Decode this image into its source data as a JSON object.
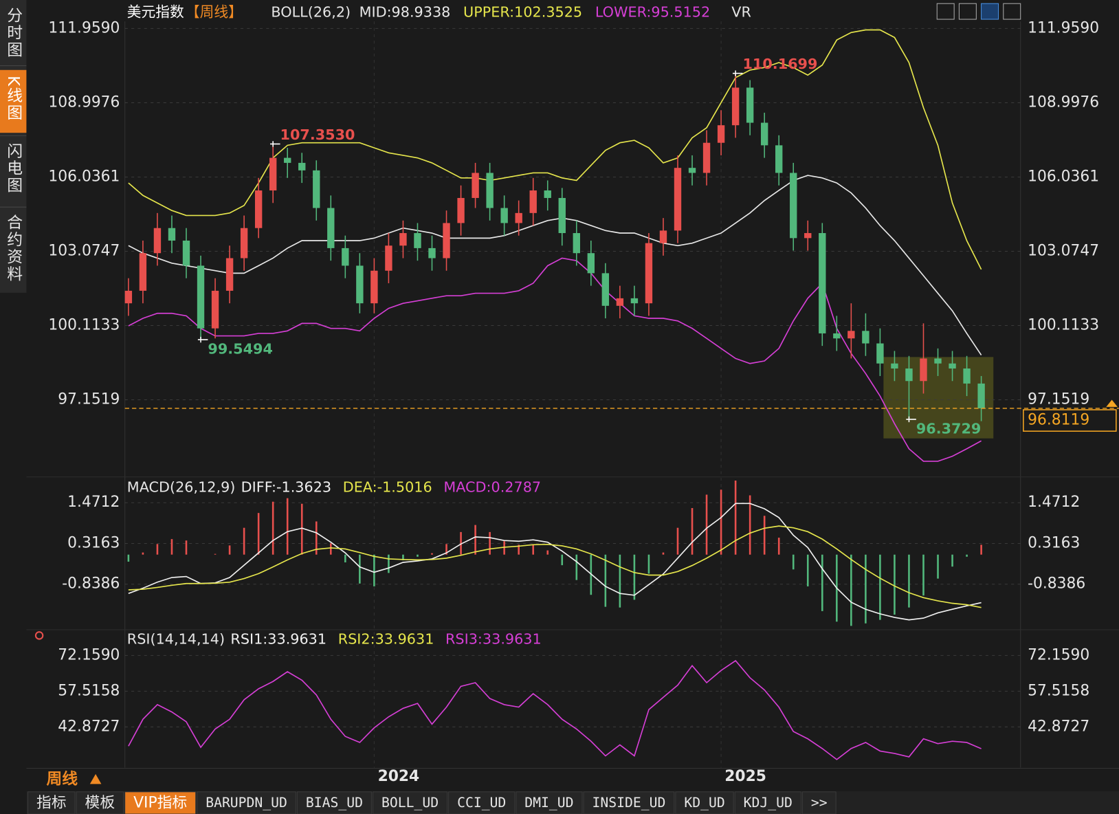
{
  "sidebar": [
    "分时图",
    "K线图",
    "闪电图",
    "合约资料"
  ],
  "period": "周线",
  "tabs": [
    "指标",
    "模板",
    "VIP指标",
    "BARUPDN_UD",
    "BIAS_UD",
    "BOLL_UD",
    "CCI_UD",
    "DMI_UD",
    "INSIDE_UD",
    "KD_UD",
    "KDJ_UD",
    ">>"
  ],
  "chart_data": [
    {
      "type": "candlestick",
      "title": "美元指数",
      "subtitle": "【周线】",
      "indicator": "BOLL(26,2)",
      "extra": "VR",
      "ylim": [
        94.16,
        112.24
      ],
      "yticks": [
        {
          "value": 111.959,
          "label": "111.9590"
        },
        108.9976,
        106.0361,
        103.0747,
        100.1133,
        97.1519
      ],
      "grid": true,
      "up_color": "#e8504d",
      "down_color": "#52b87c",
      "categories": [
        null,
        null,
        null,
        null,
        null,
        null,
        null,
        null,
        null,
        null,
        null,
        null,
        null,
        null,
        null,
        null,
        null,
        "2024",
        null,
        null,
        null,
        null,
        null,
        null,
        null,
        null,
        null,
        null,
        null,
        null,
        null,
        null,
        null,
        null,
        null,
        null,
        null,
        null,
        null,
        null,
        null,
        "2025",
        null,
        null,
        null,
        null,
        null,
        null,
        null,
        null,
        null,
        null,
        null,
        null,
        null,
        null,
        null,
        null,
        null,
        null
      ],
      "open": [
        101.0,
        101.5,
        103.0,
        104.0,
        103.5,
        102.5,
        100.0,
        101.5,
        102.8,
        104.0,
        105.5,
        106.8,
        106.6,
        106.3,
        104.8,
        103.2,
        102.5,
        101.0,
        102.3,
        103.3,
        103.8,
        103.2,
        102.8,
        104.2,
        105.2,
        106.2,
        104.8,
        104.2,
        104.6,
        105.5,
        105.2,
        103.8,
        103.0,
        102.2,
        100.9,
        101.2,
        101.0,
        103.4,
        103.9,
        106.4,
        106.2,
        107.4,
        108.1,
        109.6,
        108.2,
        107.3,
        106.2,
        103.6,
        103.8,
        99.8,
        99.6,
        99.9,
        99.4,
        98.6,
        98.4,
        97.9,
        98.8,
        98.6,
        98.4,
        97.8
      ],
      "high": [
        102.0,
        103.5,
        104.6,
        104.5,
        104.0,
        102.9,
        102.0,
        103.3,
        104.5,
        106.0,
        107.353,
        107.2,
        107.0,
        106.7,
        105.3,
        103.7,
        103.0,
        102.8,
        103.8,
        104.3,
        104.2,
        103.7,
        104.7,
        105.7,
        106.6,
        106.6,
        105.3,
        105.1,
        106.0,
        105.9,
        105.6,
        104.3,
        103.5,
        102.6,
        101.7,
        101.7,
        103.8,
        104.4,
        106.9,
        106.9,
        107.9,
        108.7,
        110.1699,
        109.9,
        108.6,
        107.7,
        106.6,
        104.3,
        104.2,
        100.5,
        101.0,
        100.6,
        100.0,
        99.1,
        98.9,
        100.2,
        99.2,
        99.1,
        98.9,
        98.1
      ],
      "low": [
        100.5,
        101.0,
        102.5,
        103.0,
        102.0,
        99.5494,
        99.6,
        101.0,
        102.3,
        103.6,
        105.0,
        106.0,
        105.8,
        104.3,
        102.7,
        102.0,
        100.6,
        100.6,
        101.8,
        102.8,
        102.7,
        102.3,
        102.3,
        103.7,
        104.8,
        104.3,
        103.7,
        103.7,
        104.1,
        104.7,
        103.3,
        102.5,
        101.7,
        100.4,
        100.4,
        100.5,
        100.5,
        102.9,
        103.4,
        105.7,
        105.7,
        106.9,
        107.6,
        107.7,
        106.8,
        105.7,
        103.1,
        103.1,
        99.3,
        99.1,
        98.8,
        98.9,
        98.1,
        97.9,
        96.3729,
        97.4,
        98.1,
        97.9,
        97.3,
        96.3
      ],
      "close": [
        101.5,
        103.0,
        104.0,
        103.5,
        102.5,
        100.0,
        101.5,
        102.8,
        104.0,
        105.5,
        106.8,
        106.6,
        106.3,
        104.8,
        103.2,
        102.5,
        101.0,
        102.3,
        103.3,
        103.8,
        103.2,
        102.8,
        104.2,
        105.2,
        106.2,
        104.8,
        104.2,
        104.6,
        105.5,
        105.2,
        103.8,
        103.0,
        102.2,
        100.9,
        101.2,
        101.0,
        103.4,
        103.9,
        106.4,
        106.2,
        107.4,
        108.1,
        109.6,
        108.2,
        107.3,
        106.2,
        103.6,
        103.8,
        99.8,
        99.6,
        99.9,
        99.4,
        98.6,
        98.4,
        97.9,
        98.8,
        98.6,
        98.4,
        97.8,
        96.8119
      ],
      "last_color": "#f5a623",
      "annotations": [
        {
          "label": "107.3530",
          "value": 107.353
        },
        {
          "label": "110.1699",
          "value": 110.1699
        },
        {
          "label": "99.5494",
          "value": 99.5494
        },
        {
          "label": "96.3729",
          "value": 96.3729
        }
      ],
      "series": [
        {
          "name": "MID:98.9338",
          "color": "#e8e8e8",
          "values": [
            103.3,
            103.0,
            102.8,
            102.6,
            102.5,
            102.4,
            102.3,
            102.2,
            102.2,
            102.5,
            102.8,
            103.2,
            103.5,
            103.5,
            103.5,
            103.5,
            103.5,
            103.6,
            103.8,
            104.0,
            103.9,
            103.8,
            103.6,
            103.6,
            103.6,
            103.6,
            103.7,
            103.9,
            104.1,
            104.3,
            104.4,
            104.3,
            104.1,
            103.9,
            103.8,
            103.8,
            103.6,
            103.4,
            103.3,
            103.4,
            103.6,
            103.8,
            104.2,
            104.6,
            105.1,
            105.5,
            105.9,
            106.1,
            106.0,
            105.8,
            105.4,
            104.8,
            104.1,
            103.5,
            102.8,
            102.1,
            101.4,
            100.7,
            99.8,
            98.9338
          ]
        },
        {
          "name": "UPPER:102.3525",
          "color": "#e6e64c",
          "values": [
            105.8,
            105.3,
            105.0,
            104.7,
            104.5,
            104.5,
            104.5,
            104.6,
            104.9,
            105.8,
            106.8,
            107.3,
            107.4,
            107.4,
            107.4,
            107.4,
            107.4,
            107.2,
            107.0,
            106.9,
            106.8,
            106.6,
            106.3,
            106.0,
            106.0,
            105.9,
            106.0,
            106.1,
            106.2,
            106.2,
            106.0,
            105.9,
            106.5,
            107.1,
            107.4,
            107.5,
            107.2,
            106.6,
            106.8,
            107.6,
            108.0,
            109.0,
            110.0,
            110.3,
            110.4,
            110.6,
            110.4,
            110.1,
            110.5,
            111.5,
            111.8,
            111.9,
            111.9,
            111.6,
            110.6,
            108.8,
            107.3,
            105.0,
            103.5,
            102.3525
          ]
        },
        {
          "name": "LOWER:95.5152",
          "color": "#d63fd6",
          "values": [
            100.1,
            100.4,
            100.6,
            100.6,
            100.5,
            100.0,
            99.7,
            99.7,
            99.7,
            99.8,
            99.8,
            99.9,
            100.2,
            100.2,
            100.0,
            100.0,
            99.9,
            100.4,
            100.8,
            101.0,
            101.1,
            101.2,
            101.3,
            101.3,
            101.4,
            101.4,
            101.4,
            101.5,
            101.8,
            102.5,
            102.8,
            102.7,
            102.2,
            101.5,
            101.0,
            100.5,
            100.4,
            100.4,
            100.3,
            100.0,
            99.6,
            99.2,
            98.8,
            98.6,
            98.7,
            99.2,
            100.3,
            101.2,
            101.8,
            100.0,
            99.0,
            98.2,
            97.3,
            96.2,
            95.2,
            94.7,
            94.7,
            94.9,
            95.2,
            95.5152
          ]
        }
      ]
    },
    {
      "type": "macd",
      "title": "MACD(26,12,9)",
      "ylim": [
        -2.09,
        2.16
      ],
      "yticks": [
        1.4712,
        0.3163,
        -0.8386
      ],
      "grid": true,
      "series": [
        {
          "name": "DIFF:-1.3623",
          "color": "#f0f0f0",
          "values": [
            -1.1,
            -0.95,
            -0.78,
            -0.65,
            -0.62,
            -0.82,
            -0.8,
            -0.65,
            -0.3,
            0.05,
            0.4,
            0.65,
            0.75,
            0.62,
            0.35,
            0.05,
            -0.35,
            -0.5,
            -0.38,
            -0.22,
            -0.18,
            -0.12,
            0.05,
            0.3,
            0.5,
            0.48,
            0.4,
            0.38,
            0.42,
            0.35,
            0.1,
            -0.2,
            -0.55,
            -0.9,
            -1.1,
            -1.15,
            -0.85,
            -0.55,
            -0.1,
            0.35,
            0.75,
            1.05,
            1.45,
            1.45,
            1.3,
            1.05,
            0.55,
            0.2,
            -0.4,
            -0.95,
            -1.35,
            -1.55,
            -1.68,
            -1.78,
            -1.85,
            -1.8,
            -1.65,
            -1.55,
            -1.45,
            -1.3623
          ]
        },
        {
          "name": "DEA:-1.5016",
          "color": "#e6e64c",
          "values": [
            -1.0,
            -0.98,
            -0.93,
            -0.87,
            -0.82,
            -0.82,
            -0.81,
            -0.78,
            -0.68,
            -0.54,
            -0.35,
            -0.15,
            0.03,
            0.15,
            0.19,
            0.16,
            0.06,
            -0.05,
            -0.12,
            -0.14,
            -0.15,
            -0.14,
            -0.1,
            -0.02,
            0.08,
            0.16,
            0.21,
            0.24,
            0.28,
            0.29,
            0.25,
            0.16,
            0.02,
            -0.16,
            -0.35,
            -0.51,
            -0.58,
            -0.58,
            -0.48,
            -0.31,
            -0.1,
            0.13,
            0.4,
            0.61,
            0.75,
            0.81,
            0.76,
            0.65,
            0.44,
            0.16,
            -0.14,
            -0.42,
            -0.67,
            -0.89,
            -1.08,
            -1.22,
            -1.31,
            -1.38,
            -1.42,
            -1.5016
          ]
        }
      ],
      "histogram": {
        "name": "MACD:0.2787",
        "color": "#d63fd6",
        "up_color": "#e8504d",
        "down_color": "#52b87c",
        "values": [
          -0.2,
          0.06,
          0.3,
          0.44,
          0.4,
          0.0,
          0.02,
          0.26,
          0.76,
          1.18,
          1.5,
          1.6,
          1.44,
          0.94,
          0.32,
          -0.22,
          -0.82,
          -0.9,
          -0.52,
          -0.16,
          -0.06,
          0.04,
          0.3,
          0.64,
          0.84,
          0.64,
          0.38,
          0.28,
          0.28,
          0.12,
          -0.3,
          -0.72,
          -1.14,
          -1.48,
          -1.5,
          -1.28,
          -0.54,
          0.06,
          0.76,
          1.32,
          1.7,
          1.84,
          2.1,
          1.68,
          1.1,
          0.48,
          -0.42,
          -0.9,
          -1.6,
          -1.9,
          -2.02,
          -1.95,
          -1.85,
          -1.7,
          -1.5,
          -1.16,
          -0.68,
          -0.34,
          -0.06,
          0.2787
        ]
      }
    },
    {
      "type": "line",
      "title": "RSI(14,14,14)",
      "ylim": [
        26.2,
        81.8
      ],
      "yticks": [
        {
          "value": 72.159,
          "label": "72.1590"
        },
        57.5158,
        42.8727
      ],
      "grid": true,
      "legend": [
        {
          "text": "RSI1:33.9631",
          "color": "#f0f0f0"
        },
        {
          "text": "RSI2:33.9631",
          "color": "#e6e64c"
        }
      ],
      "series": [
        {
          "name": "RSI3:33.9631",
          "color": "#d63fd6",
          "values": [
            35.0,
            46.0,
            52.0,
            49.0,
            45.0,
            34.5,
            42.0,
            46.0,
            54.0,
            58.5,
            61.5,
            65.5,
            62.0,
            56.0,
            46.0,
            39.0,
            36.5,
            42.5,
            47.0,
            50.5,
            52.5,
            44.0,
            51.0,
            59.5,
            61.0,
            54.5,
            52.0,
            51.0,
            56.5,
            52.0,
            46.0,
            42.0,
            37.0,
            31.0,
            35.5,
            31.0,
            50.0,
            55.0,
            60.0,
            68.0,
            61.0,
            66.0,
            70.0,
            63.0,
            58.0,
            51.0,
            41.0,
            38.0,
            34.0,
            29.5,
            34.0,
            36.5,
            33.0,
            32.0,
            30.6,
            38.0,
            36.0,
            37.0,
            36.5,
            33.9631
          ]
        }
      ]
    }
  ]
}
